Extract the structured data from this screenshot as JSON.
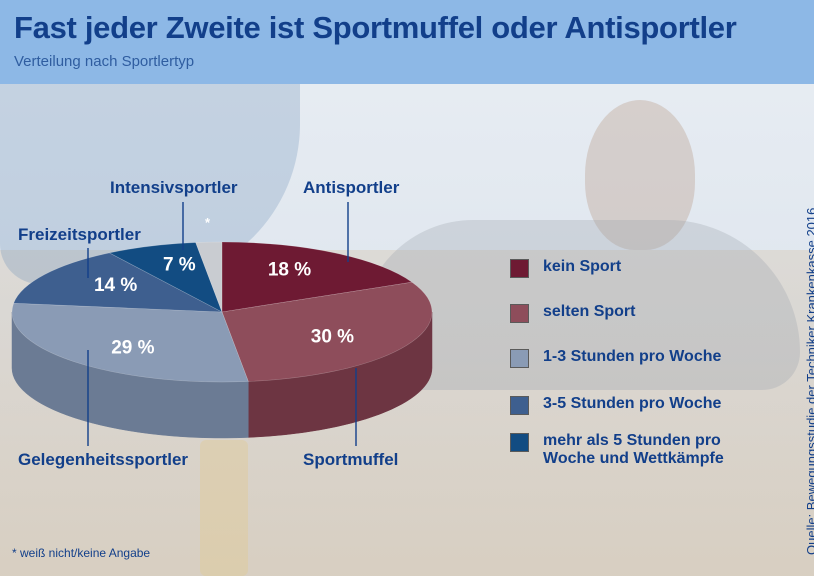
{
  "header": {
    "title": "Fast jeder Zweite ist Sportmuffel oder Antisportler",
    "subtitle": "Verteilung nach Sportlertyp"
  },
  "chart_data": {
    "type": "pie",
    "title": "Fast jeder Zweite ist Sportmuffel oder Antisportler",
    "subtitle": "Verteilung nach Sportlertyp",
    "unit": "%",
    "slices": [
      {
        "name": "kein Sport",
        "group": "Antisportler",
        "value": 18,
        "label": "18 %",
        "color": "#6e1a33",
        "side": "#4c0f22"
      },
      {
        "name": "selten Sport",
        "group": "Sportmuffel",
        "value": 30,
        "label": "30 %",
        "color": "#8e4d5b",
        "side": "#6d3542"
      },
      {
        "name": "1-3 Stunden pro Woche",
        "group": "Gelegenheitssportler",
        "value": 29,
        "label": "29 %",
        "color": "#8a9bb5",
        "side": "#6b7b94"
      },
      {
        "name": "3-5 Stunden pro Woche",
        "group": "Freizeitsportler",
        "value": 14,
        "label": "14 %",
        "color": "#3e5f8f",
        "side": "#2c466d"
      },
      {
        "name": "mehr als 5 Stunden pro Woche und Wettkämpfe",
        "group": "Intensivsportler",
        "value": 7,
        "label": "7 %",
        "color": "#124c82",
        "side": "#0c3760"
      },
      {
        "name": "weiß nicht/keine Angabe",
        "group": "",
        "value": 2,
        "label": "*",
        "color": "#c9ccd1",
        "side": "#a7aab0"
      }
    ]
  },
  "groups": {
    "antisportler": "Antisportler",
    "sportmuffel": "Sportmuffel",
    "gelegenheit": "Gelegenheitssportler",
    "freizeit": "Freizeitsportler",
    "intensiv": "Intensivsportler"
  },
  "legend": [
    {
      "label": "kein Sport",
      "color": "#6e1a33"
    },
    {
      "label": "selten Sport",
      "color": "#8e4d5b"
    },
    {
      "label": "1-3 Stunden pro Woche",
      "color": "#8a9bb5"
    },
    {
      "label": "3-5 Stunden pro Woche",
      "color": "#3e5f8f"
    },
    {
      "label": "mehr als 5 Stunden pro Woche und Wettkämpfe",
      "color": "#124c82"
    }
  ],
  "footnote": "* weiß nicht/keine Angabe",
  "source": "Quelle: Bewegungsstudie der Techniker Krankenkasse 2016"
}
